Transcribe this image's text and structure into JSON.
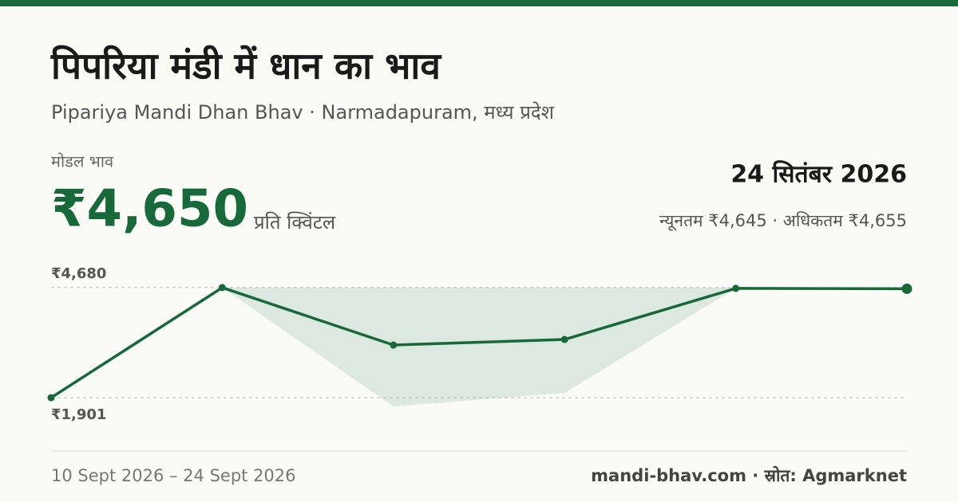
{
  "header": {
    "title": "पिपरिया मंडी में धान का भाव",
    "subtitle": "Pipariya Mandi Dhan Bhav · Narmadapuram, मध्य प्रदेश",
    "price_label": "मोडल भाव",
    "price": "₹4,650",
    "unit": "प्रति क्विंटल",
    "date": "24 सितंबर 2026",
    "range": "न्यूनतम ₹4,645 · अधिकतम ₹4,655"
  },
  "chart_data": {
    "type": "line",
    "categories": [
      null,
      null,
      null,
      null,
      null,
      null
    ],
    "series": [
      {
        "color": "#17693a",
        "values": [
          1901,
          4680,
          3230,
          3371,
          4660,
          4650
        ]
      },
      {
        "color": "#dde8e0",
        "values": [
          null,
          4680,
          1680,
          2022,
          4660,
          null
        ]
      },
      {
        "color": "#dde8e0",
        "values": [
          null,
          4680,
          4680,
          4680,
          4680,
          null
        ]
      }
    ],
    "ylim": [
      1400,
      4900
    ],
    "yticks": [
      {
        "value": 1901,
        "label": "₹1,901"
      },
      {
        "value": 4680,
        "label": "₹4,680"
      }
    ],
    "grid": true
  },
  "footer": {
    "period": "10 Sept 2026 – 24 Sept 2026",
    "source": "mandi-bhav.com · स्रोत: Agmarknet"
  }
}
